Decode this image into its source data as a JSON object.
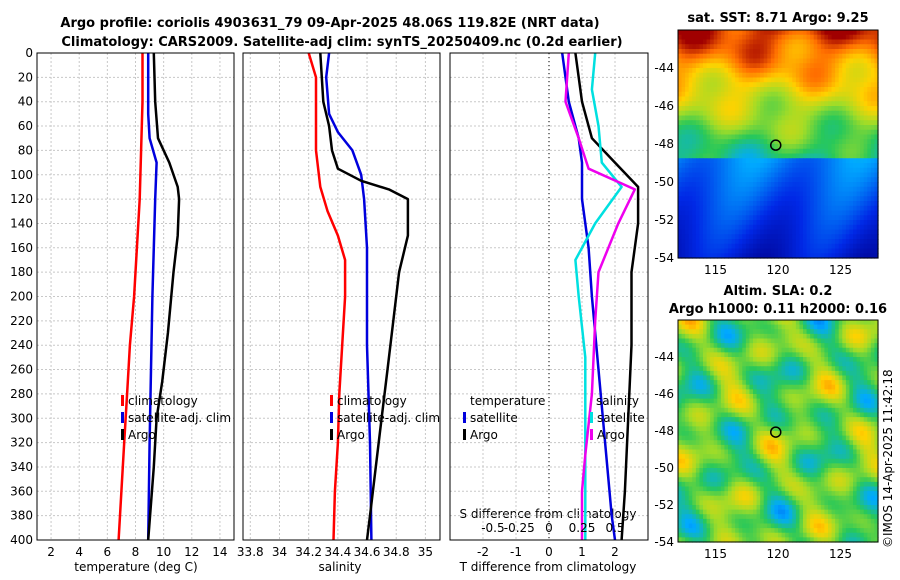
{
  "header": {
    "title_line1": "Argo profile: coriolis 4903631_79 09-Apr-2025 48.06S 119.82E (NRT data)",
    "title_line2": "Climatology: CARS2009. Satellite-adj clim: synTS_20250409.nc (0.2d earlier)"
  },
  "watermark": "©IMOS 14-Apr-2025 11:42:18",
  "colors": {
    "climatology": "#ff0000",
    "satellite": "#0000dd",
    "argo": "#000000",
    "temp_diff": "#ee00ee",
    "sal_diff": "#00e0e0",
    "grid": "#c8c8c8"
  },
  "chart_data": [
    {
      "type": "line",
      "name": "temperature-profile",
      "xlabel": "temperature (deg C)",
      "ylabel": "",
      "xlim": [
        1,
        15
      ],
      "ylim": [
        0,
        400
      ],
      "x_ticks": [
        2,
        4,
        6,
        8,
        10,
        12,
        14
      ],
      "y_ticks": [
        0,
        20,
        40,
        60,
        80,
        100,
        120,
        140,
        160,
        180,
        200,
        220,
        240,
        260,
        280,
        300,
        320,
        340,
        360,
        380,
        400
      ],
      "legend": [
        "climatology",
        "satellite-adj. clim",
        "Argo"
      ],
      "series": [
        {
          "name": "climatology",
          "color": "#ff0000",
          "points": [
            [
              8.5,
              0
            ],
            [
              8.5,
              40
            ],
            [
              8.4,
              80
            ],
            [
              8.3,
              120
            ],
            [
              8.1,
              160
            ],
            [
              7.9,
              200
            ],
            [
              7.6,
              240
            ],
            [
              7.4,
              280
            ],
            [
              7.2,
              320
            ],
            [
              7.0,
              360
            ],
            [
              6.8,
              400
            ]
          ]
        },
        {
          "name": "satellite-adj. clim",
          "color": "#0000dd",
          "points": [
            [
              8.9,
              0
            ],
            [
              8.9,
              50
            ],
            [
              9.0,
              70
            ],
            [
              9.5,
              90
            ],
            [
              9.4,
              120
            ],
            [
              9.3,
              160
            ],
            [
              9.2,
              200
            ],
            [
              9.1,
              260
            ],
            [
              9.0,
              320
            ],
            [
              8.9,
              400
            ]
          ]
        },
        {
          "name": "Argo",
          "color": "#000000",
          "points": [
            [
              9.3,
              0
            ],
            [
              9.4,
              40
            ],
            [
              9.6,
              70
            ],
            [
              10.4,
              90
            ],
            [
              11.0,
              110
            ],
            [
              11.1,
              120
            ],
            [
              11.0,
              150
            ],
            [
              10.7,
              180
            ],
            [
              10.3,
              230
            ],
            [
              9.9,
              270
            ],
            [
              9.5,
              300
            ],
            [
              9.3,
              340
            ],
            [
              9.1,
              370
            ],
            [
              8.9,
              400
            ]
          ]
        }
      ]
    },
    {
      "type": "line",
      "name": "salinity-profile",
      "xlabel": "salinity",
      "ylabel": "",
      "xlim": [
        33.75,
        35.1
      ],
      "x_ticks": [
        33.8,
        34,
        34.2,
        34.4,
        34.6,
        34.8,
        35
      ],
      "x_tick_labels": [
        "33.8",
        "34",
        "34.2",
        "34.4",
        "34.6",
        "34.8",
        "35"
      ],
      "ylim": [
        0,
        400
      ],
      "legend": [
        "climatology",
        "satellite-adj. clim",
        "Argo"
      ],
      "series": [
        {
          "name": "climatology",
          "color": "#ff0000",
          "points": [
            [
              34.2,
              0
            ],
            [
              34.25,
              20
            ],
            [
              34.25,
              80
            ],
            [
              34.28,
              110
            ],
            [
              34.33,
              130
            ],
            [
              34.4,
              150
            ],
            [
              34.45,
              170
            ],
            [
              34.45,
              200
            ],
            [
              34.43,
              240
            ],
            [
              34.41,
              280
            ],
            [
              34.4,
              320
            ],
            [
              34.38,
              360
            ],
            [
              34.37,
              400
            ]
          ]
        },
        {
          "name": "satellite-adj. clim",
          "color": "#0000dd",
          "points": [
            [
              34.34,
              0
            ],
            [
              34.32,
              20
            ],
            [
              34.34,
              50
            ],
            [
              34.4,
              65
            ],
            [
              34.5,
              80
            ],
            [
              34.56,
              100
            ],
            [
              34.58,
              120
            ],
            [
              34.6,
              160
            ],
            [
              34.6,
              240
            ],
            [
              34.62,
              320
            ],
            [
              34.63,
              400
            ]
          ]
        },
        {
          "name": "Argo",
          "color": "#000000",
          "points": [
            [
              34.28,
              0
            ],
            [
              34.3,
              40
            ],
            [
              34.34,
              60
            ],
            [
              34.36,
              80
            ],
            [
              34.4,
              95
            ],
            [
              34.56,
              105
            ],
            [
              34.75,
              112
            ],
            [
              34.88,
              120
            ],
            [
              34.88,
              150
            ],
            [
              34.82,
              180
            ],
            [
              34.78,
              220
            ],
            [
              34.74,
              260
            ],
            [
              34.7,
              300
            ],
            [
              34.66,
              340
            ],
            [
              34.62,
              380
            ],
            [
              34.6,
              400
            ]
          ]
        }
      ]
    },
    {
      "type": "line",
      "name": "difference-profile",
      "xlabel": "T difference from climatology",
      "xlabel_top": "S difference from climatology",
      "xlim": [
        -3,
        3
      ],
      "x_ticks": [
        -2,
        -1,
        0,
        1,
        2
      ],
      "x_top_ticks": [
        "-0.5",
        "-0.25",
        "0",
        "0.25",
        "0.5"
      ],
      "ylim": [
        0,
        400
      ],
      "legend": [
        "temperature",
        "satellite",
        "Argo",
        "salinity",
        "satellite",
        "Argo"
      ],
      "series": [
        {
          "name": "T satellite",
          "color": "#0000dd",
          "points": [
            [
              0.4,
              0
            ],
            [
              0.6,
              40
            ],
            [
              0.9,
              70
            ],
            [
              1.0,
              90
            ],
            [
              1.0,
              120
            ],
            [
              1.2,
              160
            ],
            [
              1.3,
              200
            ],
            [
              1.5,
              260
            ],
            [
              1.7,
              320
            ],
            [
              1.9,
              380
            ],
            [
              2.0,
              400
            ]
          ]
        },
        {
          "name": "T Argo",
          "color": "#000000",
          "points": [
            [
              0.8,
              0
            ],
            [
              1.0,
              40
            ],
            [
              1.3,
              70
            ],
            [
              2.0,
              90
            ],
            [
              2.7,
              110
            ],
            [
              2.7,
              140
            ],
            [
              2.5,
              180
            ],
            [
              2.5,
              240
            ],
            [
              2.4,
              300
            ],
            [
              2.3,
              360
            ],
            [
              2.2,
              400
            ]
          ]
        },
        {
          "name": "S satellite",
          "color": "#00e0e0",
          "points": [
            [
              1.4,
              0
            ],
            [
              1.3,
              30
            ],
            [
              1.5,
              60
            ],
            [
              1.6,
              90
            ],
            [
              2.2,
              110
            ],
            [
              1.4,
              140
            ],
            [
              0.8,
              170
            ],
            [
              0.9,
              200
            ],
            [
              1.1,
              250
            ],
            [
              1.1,
              300
            ],
            [
              1.1,
              360
            ],
            [
              1.1,
              400
            ]
          ]
        },
        {
          "name": "S Argo",
          "color": "#ee00ee",
          "points": [
            [
              0.6,
              0
            ],
            [
              0.5,
              40
            ],
            [
              0.9,
              70
            ],
            [
              1.2,
              95
            ],
            [
              2.6,
              112
            ],
            [
              2.1,
              140
            ],
            [
              1.5,
              180
            ],
            [
              1.4,
              220
            ],
            [
              1.3,
              280
            ],
            [
              1.1,
              330
            ],
            [
              1.0,
              360
            ],
            [
              1.0,
              400
            ]
          ]
        }
      ]
    },
    {
      "type": "heatmap",
      "name": "sst-map",
      "title": "sat. SST: 8.71 Argo: 9.25",
      "xlim": [
        112,
        128
      ],
      "ylim": [
        -54,
        -42
      ],
      "x_ticks": [
        115,
        120,
        125
      ],
      "y_ticks": [
        -44,
        -46,
        -48,
        -50,
        -52,
        -54
      ],
      "marker": [
        119.82,
        -48.06
      ]
    },
    {
      "type": "heatmap",
      "name": "sla-map",
      "title": "Altim. SLA: 0.2",
      "subtitle": "Argo h1000: 0.11 h2000: 0.16",
      "xlim": [
        112,
        128
      ],
      "ylim": [
        -54,
        -42
      ],
      "x_ticks": [
        115,
        120,
        125
      ],
      "y_ticks": [
        -44,
        -46,
        -48,
        -50,
        -52,
        -54
      ],
      "marker": [
        119.82,
        -48.06
      ]
    }
  ]
}
